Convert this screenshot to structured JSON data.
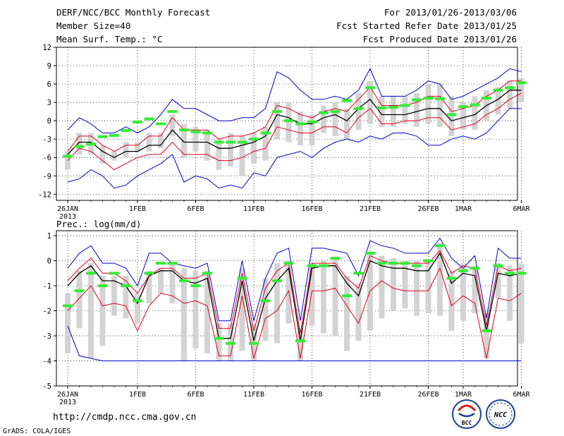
{
  "header": {
    "line1_left": "DERF/NCC/BCC Monthly Forecast",
    "line2_left": "Member Size=40",
    "line3_left": "Mean Surf. Temp.: °C",
    "line1_right": "For 2013/01/26-2013/03/06",
    "line2_right": "Fcst Started Refer Date 2013/01/25",
    "line3_right": "Fcst Produced Date 2013/01/26"
  },
  "footer": {
    "url": "http://cmdp.ncc.cma.gov.cn",
    "credit": "GrADS: COLA/IGES",
    "logo_bcc": "BCC",
    "logo_ncc": "NCC"
  },
  "colors": {
    "mean": "#000000",
    "spread": "#e0001b",
    "extreme": "#0000d0",
    "box": "#d3d3d3",
    "observed": "#33ee33"
  },
  "chart_data": [
    {
      "type": "line",
      "title": "Mean Surf. Temp.: °C",
      "xlabel": "",
      "ylabel": "°C",
      "x_start": "2013-01-26",
      "days": 40,
      "ylim": [
        -13,
        12
      ],
      "yticks": [
        -12,
        -9,
        -6,
        -3,
        0,
        3,
        6,
        9,
        12
      ],
      "xtick_labels": [
        {
          "day": 0,
          "label": "26JAN",
          "sub": "2013"
        },
        {
          "day": 6,
          "label": "1FEB"
        },
        {
          "day": 11,
          "label": "6FEB"
        },
        {
          "day": 16,
          "label": "11FEB"
        },
        {
          "day": 21,
          "label": "16FEB"
        },
        {
          "day": 26,
          "label": "21FEB"
        },
        {
          "day": 31,
          "label": "26FEB"
        },
        {
          "day": 34,
          "label": "1MAR"
        },
        {
          "day": 39,
          "label": "6MAR"
        }
      ],
      "grid": true,
      "series": [
        {
          "name": "max",
          "color": "#0000d0",
          "values": [
            -1.5,
            0.5,
            -0.5,
            -2,
            -2,
            -1,
            -2,
            -1,
            1,
            3.5,
            2,
            2,
            1,
            0,
            0,
            0.5,
            0.5,
            2,
            8,
            7,
            5,
            3.5,
            3.5,
            4,
            3.5,
            5,
            8.5,
            4,
            4,
            4,
            5,
            6.5,
            6,
            3.5,
            4,
            5,
            6,
            7,
            8.5,
            8
          ]
        },
        {
          "name": "upper",
          "color": "#e0001b",
          "values": [
            -5,
            -2.5,
            -2.5,
            -4,
            -5,
            -4,
            -4,
            -2.5,
            -2.5,
            0.5,
            -1.5,
            -1.5,
            -1.5,
            -3,
            -2.5,
            -2.5,
            -2,
            -1,
            2.5,
            2,
            1,
            0.5,
            1.5,
            2,
            1.5,
            3.5,
            5.5,
            2.5,
            2.5,
            2.5,
            3,
            4,
            4,
            1.5,
            2,
            2.5,
            4,
            5,
            6.5,
            6.5
          ]
        },
        {
          "name": "mean",
          "color": "#000000",
          "values": [
            -5.5,
            -3.5,
            -3.5,
            -5,
            -6,
            -5,
            -5,
            -4,
            -4,
            -1.5,
            -3.5,
            -3.5,
            -3.5,
            -4.5,
            -4.5,
            -4,
            -3.5,
            -2.5,
            1,
            0.5,
            -0.5,
            -0.5,
            0.5,
            1,
            0,
            2,
            3.5,
            1,
            1,
            1,
            1.5,
            2,
            2,
            0,
            0.5,
            1,
            2.5,
            3.5,
            5,
            5
          ]
        },
        {
          "name": "lower",
          "color": "#e0001b",
          "values": [
            -6.5,
            -4.5,
            -5,
            -6.5,
            -8,
            -7,
            -6,
            -5.5,
            -5.5,
            -3.5,
            -5.5,
            -5.5,
            -5.5,
            -6.5,
            -6.5,
            -6,
            -5,
            -4.5,
            -1,
            -1.5,
            -2,
            -2,
            -1,
            -1,
            -2,
            0.5,
            2,
            -0.5,
            -0.5,
            0,
            0,
            0.5,
            0.5,
            -1.5,
            -1,
            -0.5,
            1,
            2,
            3.5,
            4.5
          ]
        },
        {
          "name": "min",
          "color": "#0000d0",
          "values": [
            -10,
            -9.5,
            -8,
            -9,
            -11,
            -10.5,
            -9,
            -8,
            -7,
            -5.5,
            -10,
            -9,
            -9.5,
            -11,
            -10.5,
            -11,
            -8.5,
            -9,
            -6,
            -5.5,
            -5,
            -6,
            -4.5,
            -3.5,
            -3,
            -3.5,
            -2.5,
            -3,
            -2,
            -2,
            -2.5,
            -4,
            -4,
            -3,
            -2.5,
            -3,
            -2,
            0,
            2,
            2
          ]
        }
      ],
      "box_low": [
        -8,
        -5.5,
        -5.5,
        -7,
        -6.5,
        -6,
        -5,
        -5,
        -4.5,
        -2.5,
        -6,
        -5,
        -6.5,
        -8,
        -7.5,
        -9,
        -7,
        -6.5,
        -3,
        -3.5,
        -4,
        -4,
        -2,
        -2.5,
        -3,
        -1.5,
        -0.5,
        -1,
        -1,
        -0.5,
        -1,
        -0.5,
        -1,
        -2.5,
        -1.5,
        -1.5,
        0,
        1,
        2,
        3
      ],
      "box_high": [
        -5,
        -2,
        -2,
        -4,
        -5,
        -3.5,
        -3.5,
        -2,
        -2,
        1,
        -0.5,
        -1,
        -1.5,
        -3,
        -2,
        -2.5,
        -2,
        -1,
        3,
        3,
        1.5,
        1,
        2.5,
        3,
        2,
        4.5,
        6.5,
        4,
        4,
        4,
        4.5,
        6,
        6,
        4,
        3,
        4,
        5,
        5.5,
        6.5,
        7
      ],
      "observed": [
        -5.8,
        -4.2,
        -3.8,
        -2.6,
        -2.4,
        -1.6,
        -0.2,
        0.3,
        -0.5,
        1.5,
        -1.5,
        -1.8,
        -2,
        -3.5,
        -3.5,
        -3.5,
        -3,
        -2,
        1.5,
        0,
        -0.5,
        -0.2,
        1.3,
        1.5,
        3.3,
        2,
        5.4,
        2.1,
        2.2,
        2.5,
        3.4,
        3.7,
        3.6,
        1,
        2.3,
        2.6,
        3.7,
        5,
        5.4,
        6.2
      ]
    },
    {
      "type": "line",
      "title": "Prec.: log(mm/d)",
      "xlabel": "",
      "ylabel": "log(mm/d)",
      "x_start": "2013-01-26",
      "days": 40,
      "ylim": [
        -5,
        1.2
      ],
      "yticks": [
        -5,
        -4,
        -3,
        -2,
        -1,
        0,
        1
      ],
      "xtick_labels": [
        {
          "day": 0,
          "label": "26JAN",
          "sub": "2013"
        },
        {
          "day": 6,
          "label": "1FEB"
        },
        {
          "day": 11,
          "label": "6FEB"
        },
        {
          "day": 16,
          "label": "11FEB"
        },
        {
          "day": 21,
          "label": "16FEB"
        },
        {
          "day": 26,
          "label": "21FEB"
        },
        {
          "day": 31,
          "label": "26FEB"
        },
        {
          "day": 34,
          "label": "1MAR"
        },
        {
          "day": 39,
          "label": "6MAR"
        }
      ],
      "grid": true,
      "series": [
        {
          "name": "max",
          "color": "#0000d0",
          "values": [
            -0.3,
            0.3,
            0.6,
            -0.1,
            -0.1,
            -0.3,
            -1,
            0.3,
            0.3,
            -0.1,
            -0.2,
            -0.3,
            -0.1,
            -2.4,
            -2.4,
            0,
            -2.4,
            -0.7,
            0.3,
            0.5,
            -2.4,
            0.5,
            0.5,
            0.4,
            0.3,
            -0.6,
            0.8,
            0.6,
            0.5,
            0.3,
            0.3,
            0.3,
            0.9,
            0.1,
            -0.3,
            0.2,
            -2.3,
            0.5,
            0.1,
            0.1
          ]
        },
        {
          "name": "upper",
          "color": "#e0001b",
          "values": [
            -0.8,
            -0.3,
            0.1,
            -0.5,
            -0.5,
            -0.8,
            -1.3,
            -0.6,
            -0.3,
            -0.3,
            -0.7,
            -0.7,
            -0.5,
            -2.7,
            -2.7,
            -0.5,
            -2.8,
            -1.1,
            -0.4,
            -0.1,
            -2.9,
            -0.1,
            -0.1,
            -0.1,
            -0.7,
            -1.1,
            0.2,
            0,
            -0.1,
            -0.1,
            -0.1,
            -0.1,
            0.4,
            -0.5,
            -0.2,
            -0.3,
            -2.6,
            -0.2,
            -0.4,
            -0.3
          ]
        },
        {
          "name": "mean",
          "color": "#000000",
          "values": [
            -1,
            -0.5,
            -0.2,
            -0.8,
            -0.8,
            -1,
            -1.7,
            -0.6,
            -0.4,
            -0.4,
            -0.8,
            -0.9,
            -0.7,
            -3.1,
            -3.1,
            -0.8,
            -3.2,
            -1.5,
            -0.8,
            -0.3,
            -3.2,
            -0.3,
            -0.2,
            -0.2,
            -0.9,
            -1.4,
            0,
            -0.2,
            -0.3,
            -0.3,
            -0.4,
            -0.4,
            0.3,
            -0.9,
            -0.5,
            -0.6,
            -2.8,
            -0.5,
            -0.6,
            -0.5
          ]
        },
        {
          "name": "lower",
          "color": "#e0001b",
          "values": [
            -2,
            -1.5,
            -1,
            -1.8,
            -1.7,
            -1.8,
            -2.8,
            -1.8,
            -1.3,
            -1.4,
            -1.7,
            -1.6,
            -1.8,
            -3.8,
            -3.8,
            -1.4,
            -3.9,
            -2.3,
            -2,
            -1.2,
            -3.9,
            -1.2,
            -1.2,
            -1.1,
            -1.8,
            -2.5,
            -1.2,
            -0.8,
            -1.1,
            -1.2,
            -1.2,
            -1.2,
            -0.3,
            -1.8,
            -1.4,
            -1.7,
            -3.9,
            -1.5,
            -1.6,
            -1.3
          ]
        },
        {
          "name": "min",
          "color": "#0000d0",
          "values": [
            -2.6,
            -3.8,
            -3.9,
            -4,
            -4,
            -4,
            -4,
            -4,
            -4,
            -4,
            -4,
            -4,
            -4,
            -4,
            -4,
            -4,
            -4,
            -4,
            -4,
            -4,
            -4,
            -4,
            -4,
            -4,
            -4,
            -4,
            -4,
            -4,
            -4,
            -4,
            -4,
            -4,
            -4,
            -4,
            -4,
            -4,
            -4,
            -4,
            -4,
            -4
          ]
        }
      ],
      "box_low": [
        -3.7,
        -2.7,
        -3.9,
        -3.4,
        -2.2,
        -2.3,
        -2.5,
        -1.7,
        -1.3,
        -1.7,
        -4,
        -3.5,
        -3.7,
        -4,
        -4,
        -3.6,
        -4,
        -3.2,
        -3.3,
        -2.5,
        -4,
        -2.6,
        -2.9,
        -3,
        -3.6,
        -3.2,
        -2.8,
        -2.3,
        -2,
        -1.9,
        -2.2,
        -2.1,
        -2.2,
        -2.8,
        -2.4,
        -2.1,
        -3.9,
        -1.5,
        -2.4,
        -3.3
      ],
      "box_high": [
        -1.3,
        -0.4,
        -0.1,
        -0.6,
        -0.6,
        -0.6,
        -1.3,
        -0.4,
        -0.3,
        -0.1,
        -0.3,
        -0.4,
        -0.4,
        -2.5,
        -2.5,
        -0.3,
        -2.5,
        -0.7,
        -0.1,
        0,
        -2.7,
        -0.1,
        0,
        0.1,
        -0.6,
        -0.9,
        0.3,
        0.2,
        0.1,
        0,
        0,
        0,
        0.7,
        -0.4,
        -0.1,
        -0.2,
        -2.1,
        -0.1,
        -0.2,
        -0.1
      ],
      "observed": [
        -1.8,
        -1.2,
        -0.5,
        -1,
        -0.5,
        -1,
        -1.6,
        -0.5,
        -0.1,
        -0.1,
        -0.8,
        -1,
        -0.5,
        -3.1,
        -3.3,
        -0.7,
        -3.3,
        -1.6,
        -0.8,
        -0.1,
        -3.2,
        -0.2,
        -0.2,
        0.1,
        -1.4,
        -0.5,
        0.3,
        -0.1,
        -0.1,
        -0.1,
        -0.2,
        0,
        0.6,
        -0.7,
        -0.4,
        -0.3,
        -2.8,
        -0.2,
        -0.5,
        -0.5
      ]
    }
  ]
}
